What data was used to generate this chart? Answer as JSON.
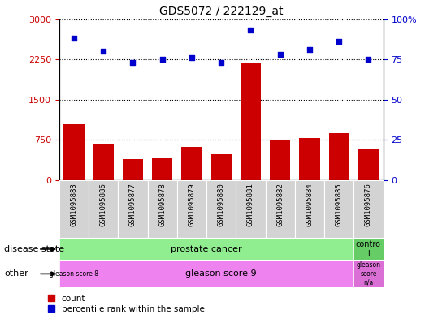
{
  "title": "GDS5072 / 222129_at",
  "samples": [
    "GSM1095883",
    "GSM1095886",
    "GSM1095877",
    "GSM1095878",
    "GSM1095879",
    "GSM1095880",
    "GSM1095881",
    "GSM1095882",
    "GSM1095884",
    "GSM1095885",
    "GSM1095876"
  ],
  "counts": [
    1050,
    680,
    390,
    410,
    620,
    490,
    2200,
    750,
    780,
    870,
    580
  ],
  "percentile": [
    88,
    80,
    73,
    75,
    76,
    73,
    93,
    78,
    81,
    86,
    75
  ],
  "ylim_left": [
    0,
    3000
  ],
  "ylim_right": [
    0,
    100
  ],
  "yticks_left": [
    0,
    750,
    1500,
    2250,
    3000
  ],
  "yticks_right": [
    0,
    25,
    50,
    75,
    100
  ],
  "bar_color": "#cc0000",
  "dot_color": "#0000cc",
  "hline_color": "#000000",
  "background_color": "#ffffff",
  "tick_bg": "#d3d3d3",
  "pc_color": "#90ee90",
  "ctrl_color": "#66cc66",
  "gleason_color": "#ee82ee",
  "gleason_na_color": "#da70d6"
}
